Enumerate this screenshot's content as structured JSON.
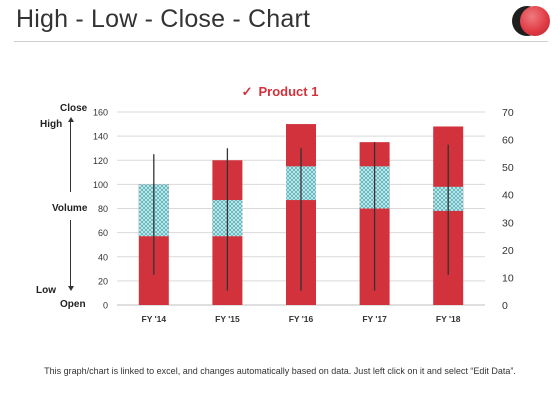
{
  "header": {
    "title": "High - Low - Close - Chart"
  },
  "legend": {
    "check_icon": "✓",
    "label": "Product 1"
  },
  "side_labels": {
    "close": "Close",
    "high": "High",
    "volume": "Volume",
    "low": "Low",
    "open": "Open"
  },
  "footnote": "This graph/chart is linked to excel, and changes automatically based on data. Just left click on it and select “Edit Data”.",
  "colors": {
    "bar_red": "#d2323c",
    "band_teal": "#5cb8c0",
    "line": "#333333",
    "grid": "#d9d9d9"
  },
  "chart_data": {
    "type": "bar",
    "categories": [
      "FY '14",
      "FY '15",
      "FY '16",
      "FY '17",
      "FY '18"
    ],
    "primary_axis": {
      "min": 0,
      "max": 160,
      "step": 20,
      "ticks": [
        "0",
        "20",
        "40",
        "60",
        "80",
        "100",
        "120",
        "140",
        "160"
      ]
    },
    "secondary_axis": {
      "min": 0,
      "max": 70,
      "step": 10,
      "ticks": [
        "0",
        "10",
        "20",
        "30",
        "40",
        "50",
        "60",
        "70"
      ]
    },
    "series": [
      {
        "name": "Product 1",
        "values": [
          100,
          120,
          150,
          135,
          148
        ]
      }
    ],
    "volume_band": [
      [
        57,
        100
      ],
      [
        57,
        87
      ],
      [
        87,
        115
      ],
      [
        80,
        115
      ],
      [
        78,
        98
      ]
    ],
    "high_low": [
      [
        25,
        125
      ],
      [
        12,
        130
      ],
      [
        12,
        130
      ],
      [
        12,
        135
      ],
      [
        25,
        133
      ]
    ],
    "grid": true,
    "legend_position": "top-center"
  }
}
